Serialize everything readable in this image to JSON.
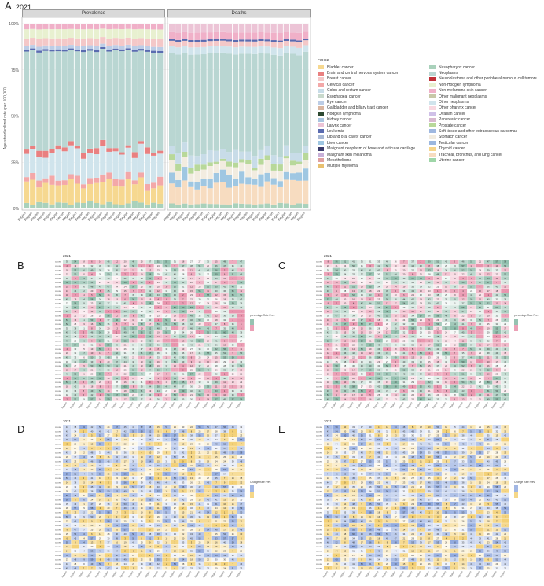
{
  "panel_letters": [
    "A",
    "B",
    "C",
    "D",
    "E"
  ],
  "title_a": "2021",
  "facets": [
    "Prevalence",
    "Deaths"
  ],
  "ylabel": "Age-standardized rate (per 100,000)",
  "yticks": [
    "0%",
    "25%",
    "50%",
    "75%",
    "100%"
  ],
  "legend_title": "cause",
  "causes": [
    "Bladder cancer",
    "Brain and central nervous system cancer",
    "Breast cancer",
    "Cervical cancer",
    "Colon and rectum cancer",
    "Esophageal cancer",
    "Eye cancer",
    "Gallbladder and biliary tract cancer",
    "Hodgkin lymphoma",
    "Kidney cancer",
    "Larynx cancer",
    "Leukemia",
    "Lip and oral cavity cancer",
    "Liver cancer",
    "Malignant neoplasm of bone and articular cartilage",
    "Malignant skin melanoma",
    "Mesothelioma",
    "Multiple myeloma",
    "Nasopharynx cancer",
    "Neoplasms",
    "Neuroblastoma and other peripheral nervous cell tumors",
    "Non-Hodgkin lymphoma",
    "Non-melanoma skin cancer",
    "Other malignant neoplasms",
    "Other neoplasms",
    "Other pharynx cancer",
    "Ovarian cancer",
    "Pancreatic cancer",
    "Prostate cancer",
    "Soft tissue and other extraosseous sarcomas",
    "Stomach cancer",
    "Testicular cancer",
    "Thyroid cancer",
    "Tracheal, bronchus, and lung cancer",
    "Uterine cancer"
  ],
  "colors": {
    "neoplasms": "#b9d6d2",
    "cause_palette": [
      "#f6d890",
      "#e98080",
      "#f4c8c8",
      "#f3a8a8",
      "#c8dce8",
      "#c9d9cc",
      "#bccde6",
      "#dab6a0",
      "#2e4a32",
      "#a9c5e0",
      "#ecc4d6",
      "#5a6bb0",
      "#a8b8d4",
      "#9fc7e2",
      "#3a3a6a",
      "#c8b0d8",
      "#e0a0a0",
      "#e8c070",
      "#a9d1bb",
      "#b9d6d2",
      "#c03038",
      "#e8f0d0",
      "#f0b0c8",
      "#c8c8a8",
      "#d0e4ec",
      "#f8d8e0",
      "#cfc0e8",
      "#d8b8d0",
      "#b8d89a",
      "#9fb8e0",
      "#f2ece0",
      "#9bb7df",
      "#f6d58a",
      "#f7dcc0",
      "#9fd6a8"
    ],
    "heat_pink": "#e37797",
    "heat_green": "#6aa890",
    "heat_blue": "#7a98d8",
    "heat_yellow": "#f1c656"
  },
  "heatmaps": [
    {
      "title": "2021",
      "legend_title": "percentage Rate Prev.",
      "scheme": "pinkgreen"
    },
    {
      "title": "2021",
      "legend_title": "percentage Rate Prev.",
      "scheme": "pinkgreen"
    },
    {
      "title": "2021",
      "legend_title": "Change Rate Prev.",
      "scheme": "yellowblue"
    },
    {
      "title": "2021",
      "legend_title": "Change Rate Prev.",
      "scheme": "yellowblue"
    }
  ],
  "chart_data": [
    {
      "type": "bar",
      "stacked": true,
      "title": "2021",
      "facets": [
        "Prevalence",
        "Deaths"
      ],
      "ylabel": "Age-standardized rate (per 100,000)",
      "ylim": [
        0,
        1
      ],
      "categories_count": 22,
      "note": "100% stacked bars per region; regional labels illegible"
    },
    {
      "type": "heatmap",
      "title": "2021",
      "rows": 34,
      "cols": 22
    },
    {
      "type": "heatmap",
      "title": "2021",
      "rows": 34,
      "cols": 22
    },
    {
      "type": "heatmap",
      "title": "2021",
      "rows": 34,
      "cols": 22
    },
    {
      "type": "heatmap",
      "title": "2021",
      "rows": 34,
      "cols": 22
    }
  ]
}
